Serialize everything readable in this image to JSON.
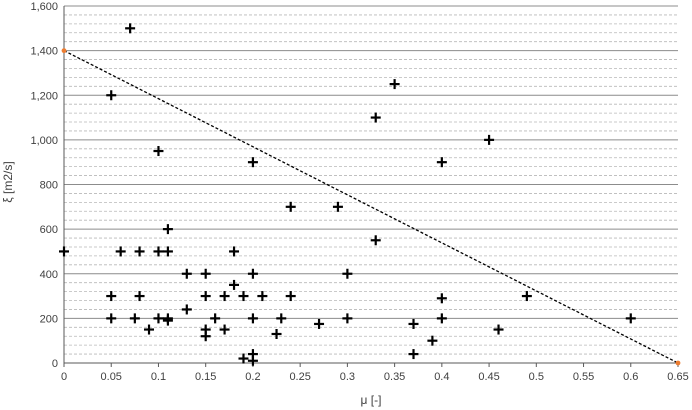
{
  "chart_data": {
    "type": "scatter",
    "xlabel": "μ [-]",
    "ylabel": "ξ [m2/s]",
    "xlim": [
      0,
      0.65
    ],
    "ylim": [
      0,
      1600
    ],
    "x_ticks": [
      "0",
      "0.05",
      "0.1",
      "0.15",
      "0.2",
      "0.25",
      "0.3",
      "0.35",
      "0.4",
      "0.45",
      "0.5",
      "0.55",
      "0.6",
      "0.65"
    ],
    "x_tick_values": [
      0,
      0.05,
      0.1,
      0.15,
      0.2,
      0.25,
      0.3,
      0.35,
      0.4,
      0.45,
      0.5,
      0.55,
      0.6,
      0.65
    ],
    "y_ticks": [
      "0",
      "200",
      "400",
      "600",
      "800",
      "1,000",
      "1,200",
      "1,400",
      "1,600"
    ],
    "y_tick_values": [
      0,
      200,
      400,
      600,
      800,
      1000,
      1200,
      1400,
      1600
    ],
    "grid": {
      "major_y_step": 200,
      "minor_y_step": 40
    },
    "marker": "plus",
    "marker_color": "#000000",
    "series": [
      {
        "points": [
          [
            0.0,
            500
          ],
          [
            0.05,
            1200
          ],
          [
            0.07,
            1500
          ],
          [
            0.05,
            300
          ],
          [
            0.05,
            200
          ],
          [
            0.06,
            500
          ],
          [
            0.08,
            500
          ],
          [
            0.08,
            300
          ],
          [
            0.075,
            200
          ],
          [
            0.09,
            150
          ],
          [
            0.1,
            950
          ],
          [
            0.1,
            500
          ],
          [
            0.11,
            600
          ],
          [
            0.11,
            500
          ],
          [
            0.1,
            200
          ],
          [
            0.11,
            200
          ],
          [
            0.11,
            190
          ],
          [
            0.13,
            400
          ],
          [
            0.13,
            240
          ],
          [
            0.15,
            400
          ],
          [
            0.15,
            300
          ],
          [
            0.15,
            150
          ],
          [
            0.15,
            120
          ],
          [
            0.16,
            200
          ],
          [
            0.17,
            300
          ],
          [
            0.17,
            150
          ],
          [
            0.18,
            500
          ],
          [
            0.18,
            350
          ],
          [
            0.19,
            300
          ],
          [
            0.19,
            20
          ],
          [
            0.2,
            900
          ],
          [
            0.2,
            400
          ],
          [
            0.2,
            200
          ],
          [
            0.2,
            40
          ],
          [
            0.2,
            10
          ],
          [
            0.21,
            300
          ],
          [
            0.225,
            130
          ],
          [
            0.23,
            200
          ],
          [
            0.24,
            700
          ],
          [
            0.24,
            300
          ],
          [
            0.27,
            175
          ],
          [
            0.29,
            700
          ],
          [
            0.3,
            400
          ],
          [
            0.3,
            200
          ],
          [
            0.33,
            1100
          ],
          [
            0.33,
            550
          ],
          [
            0.35,
            1250
          ],
          [
            0.37,
            175
          ],
          [
            0.37,
            40
          ],
          [
            0.39,
            100
          ],
          [
            0.4,
            900
          ],
          [
            0.4,
            290
          ],
          [
            0.4,
            200
          ],
          [
            0.45,
            1000
          ],
          [
            0.46,
            150
          ],
          [
            0.49,
            300
          ],
          [
            0.6,
            200
          ]
        ]
      }
    ],
    "trendline": {
      "style": "dashed",
      "color": "#000000",
      "endpoint_color": "#ED7D31",
      "from": [
        0,
        1400
      ],
      "to": [
        0.65,
        0
      ]
    }
  }
}
